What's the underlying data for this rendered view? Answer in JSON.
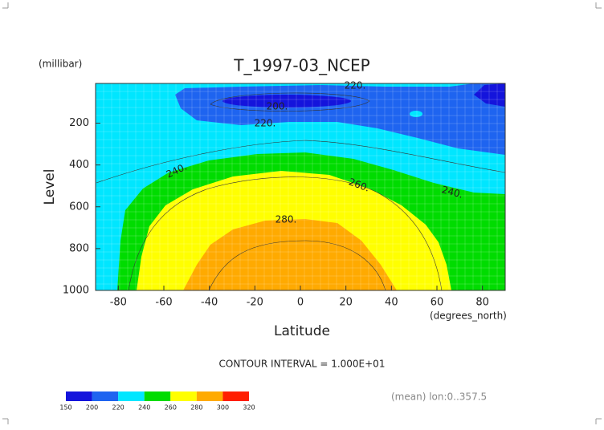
{
  "chart_data": {
    "type": "contour",
    "title": "T_1997-03_NCEP",
    "y_unit": "(millibar)",
    "y_label": "Level",
    "x_label": "Latitude",
    "x_unit": "(degrees_north)",
    "note": "CONTOUR INTERVAL = 1.000E+01",
    "footer": "(mean) lon:0..357.5",
    "xlim": [
      -90,
      90
    ],
    "xticks": [
      -80,
      -60,
      -40,
      -20,
      0,
      20,
      40,
      60,
      80
    ],
    "ylim": [
      1000,
      10
    ],
    "yticks": [
      200,
      400,
      600,
      800,
      1000
    ],
    "grid": true,
    "levels": [
      150,
      200,
      220,
      240,
      260,
      280,
      300,
      320
    ],
    "colors": [
      "#1414dc",
      "#1e64f0",
      "#00e6ff",
      "#00dc00",
      "#ffff00",
      "#ffaa00",
      "#ff1e00"
    ],
    "contour_labels": [
      "220.",
      "200.",
      "220.",
      "240.",
      "260.",
      "240.",
      "280."
    ]
  }
}
